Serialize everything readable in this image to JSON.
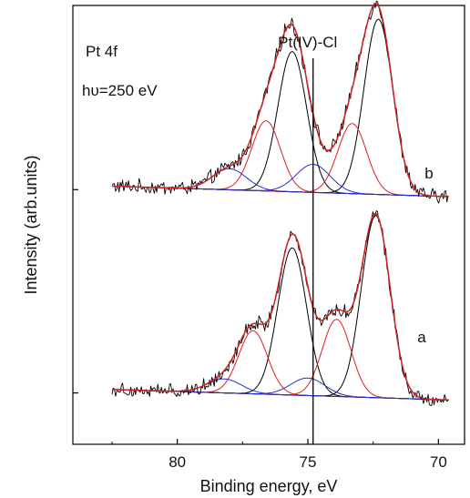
{
  "chart_data": {
    "type": "line",
    "title": "Pt 4f",
    "annotations": {
      "photon_energy": "hυ=250 eV",
      "marker_label": "Pt(IV)-Cl",
      "marker_x": 74.8
    },
    "xlabel": "Binding energy, eV",
    "ylabel": "Intensity (arb.units)",
    "xlim": [
      84,
      69
    ],
    "x_reversed": true,
    "xticks": [
      80,
      75,
      70
    ],
    "xtick_labels": [
      "80",
      "75",
      "70"
    ],
    "y_ticks_unlabeled": true,
    "grid": false,
    "legend": "none",
    "colors": {
      "raw": "#000000",
      "envelope": "#cc2222",
      "metal_component": "#000000",
      "oxide_component": "#e02020",
      "chloride_component": "#2030d0",
      "background": "#000000",
      "marker": "#000000"
    },
    "panels": [
      {
        "label": "b",
        "offset": 0.58,
        "baseline": [
          0.02,
          0.05
        ],
        "components": [
          {
            "role": "metal",
            "center": 75.6,
            "height": 0.4,
            "width": 0.55
          },
          {
            "role": "metal",
            "center": 72.3,
            "height": 0.5,
            "width": 0.55
          },
          {
            "role": "oxide",
            "center": 76.6,
            "height": 0.2,
            "width": 0.55
          },
          {
            "role": "oxide",
            "center": 73.3,
            "height": 0.2,
            "width": 0.55
          },
          {
            "role": "chloride",
            "center": 78.0,
            "height": 0.06,
            "width": 0.65
          },
          {
            "role": "chloride",
            "center": 74.8,
            "height": 0.08,
            "width": 0.65
          }
        ]
      },
      {
        "label": "a",
        "offset": 0.0,
        "baseline": [
          0.02,
          0.05
        ],
        "components": [
          {
            "role": "metal",
            "center": 75.6,
            "height": 0.42,
            "width": 0.55
          },
          {
            "role": "metal",
            "center": 72.4,
            "height": 0.52,
            "width": 0.55
          },
          {
            "role": "oxide",
            "center": 77.1,
            "height": 0.18,
            "width": 0.55
          },
          {
            "role": "oxide",
            "center": 73.9,
            "height": 0.22,
            "width": 0.55
          },
          {
            "role": "chloride",
            "center": 78.2,
            "height": 0.04,
            "width": 0.65
          },
          {
            "role": "chloride",
            "center": 75.0,
            "height": 0.05,
            "width": 0.65
          }
        ]
      }
    ]
  }
}
